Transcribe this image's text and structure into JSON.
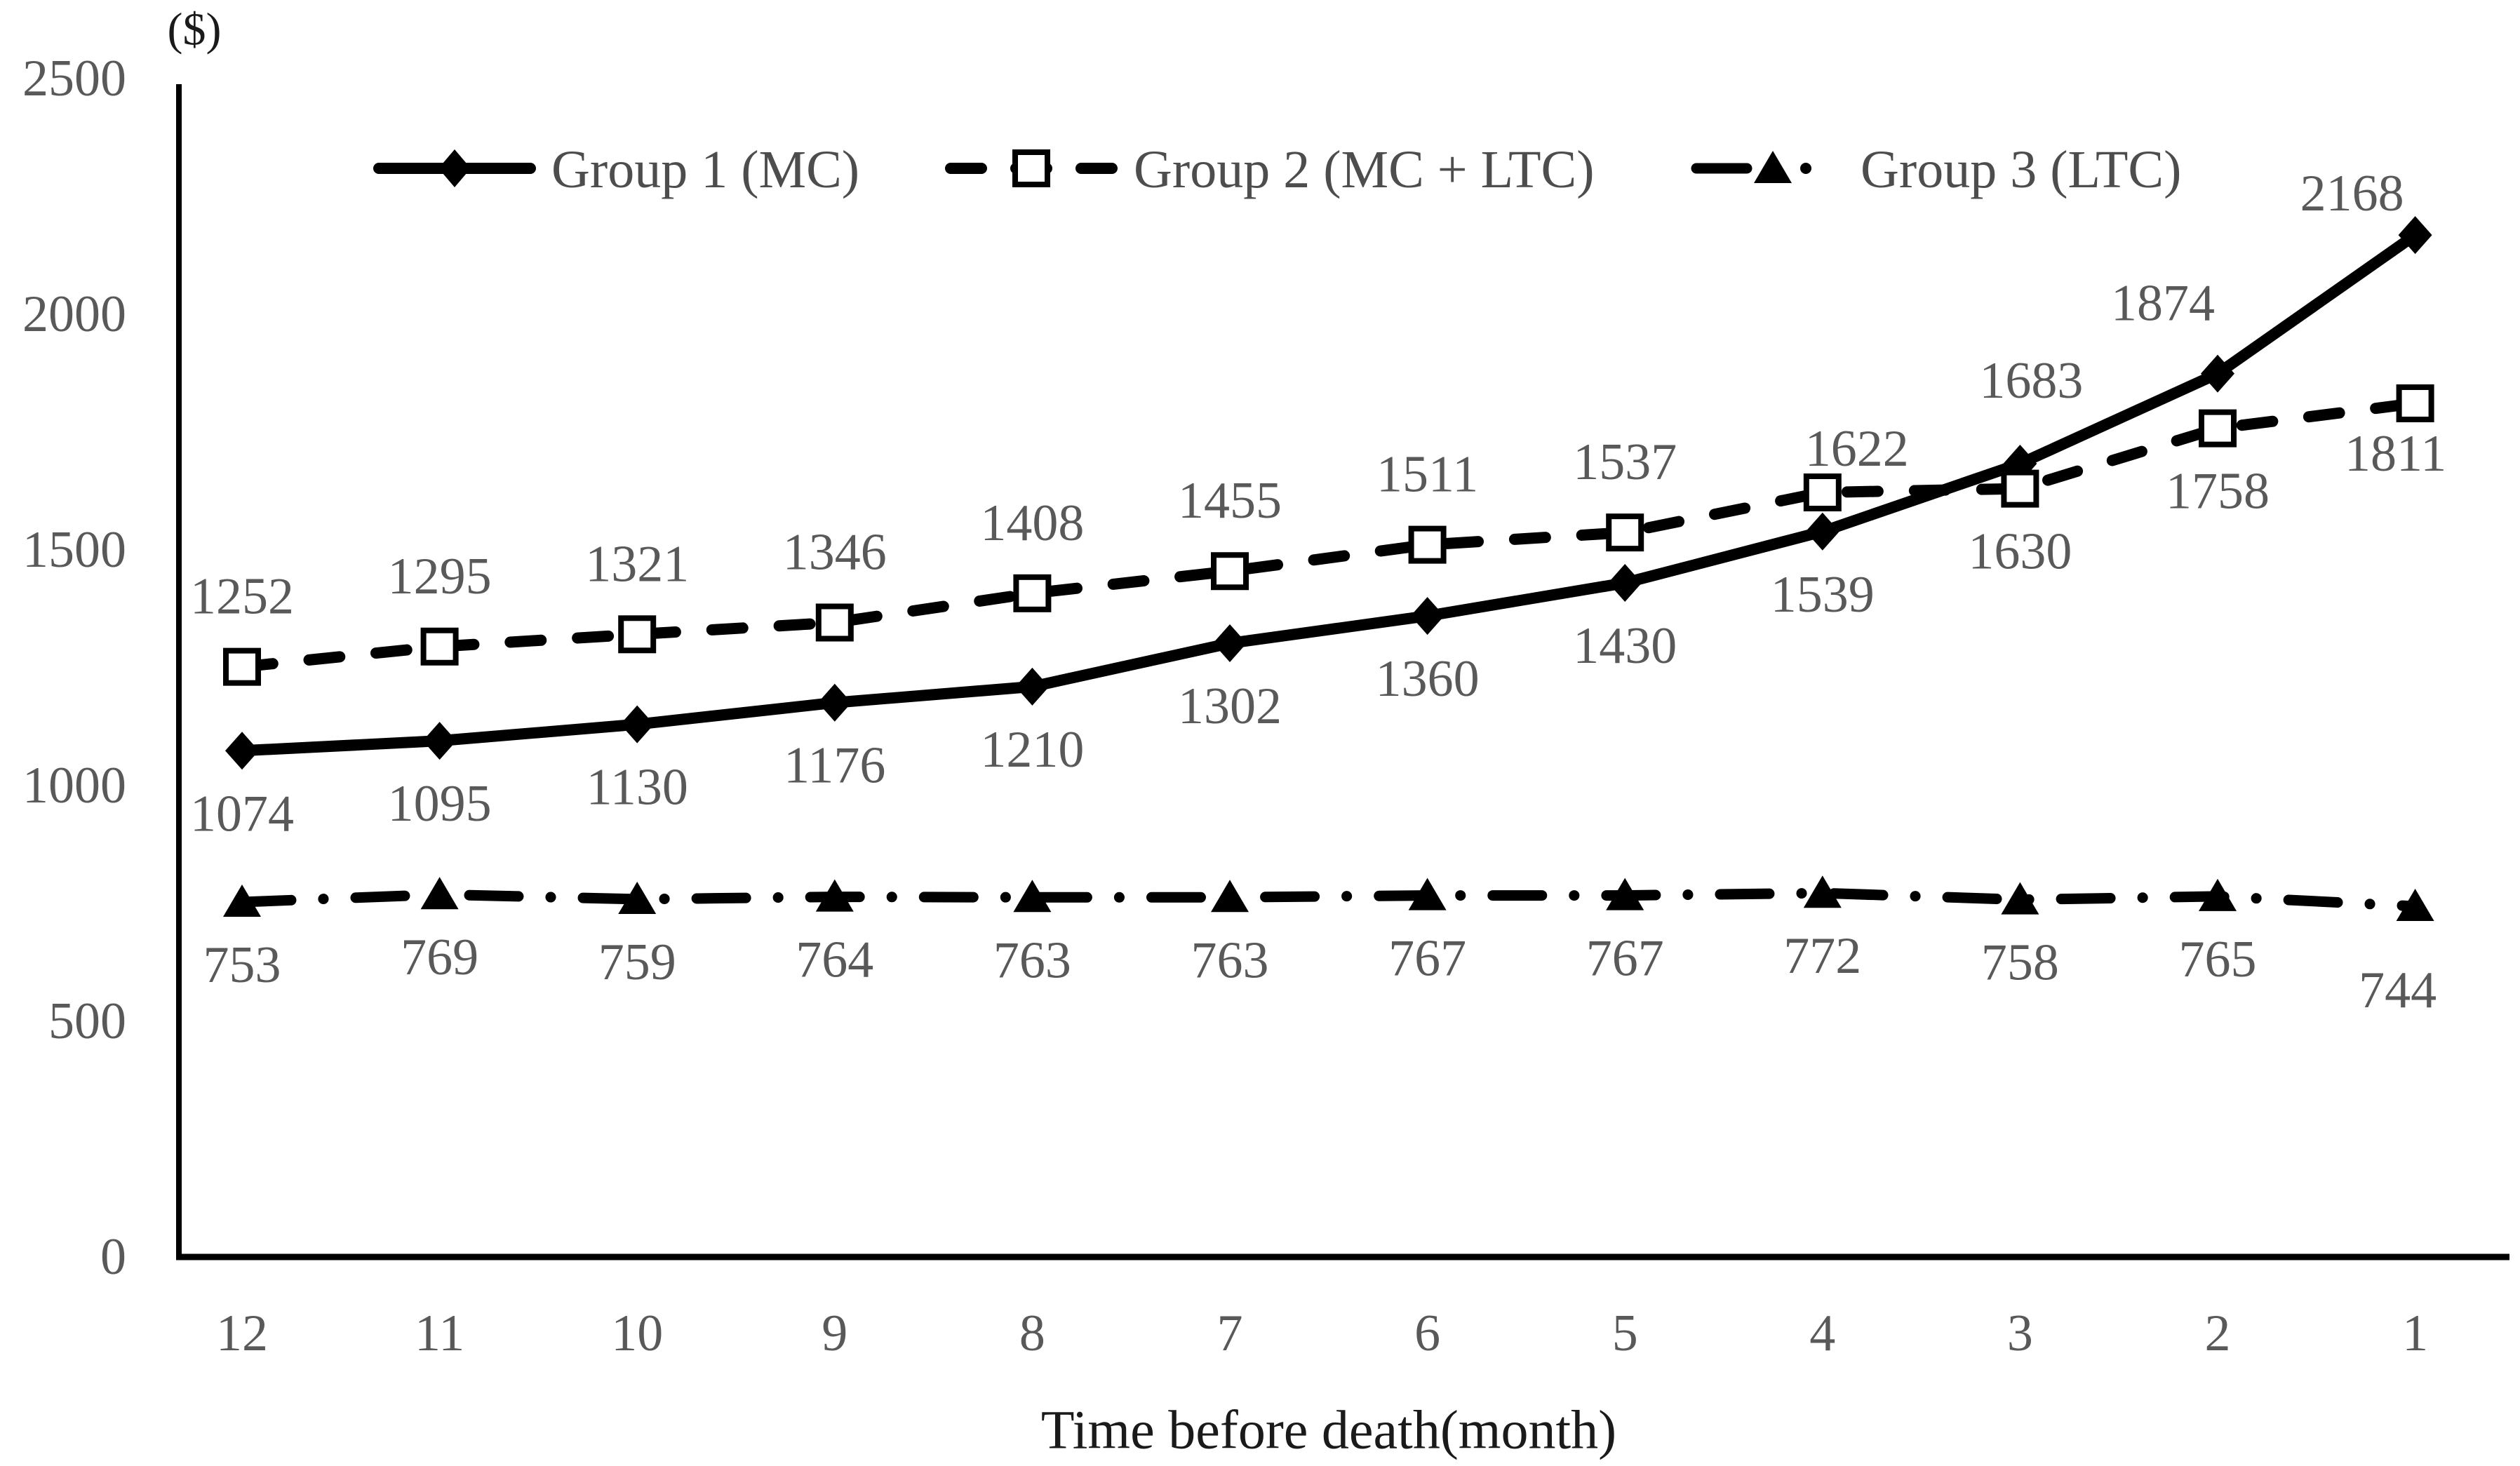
{
  "figure": {
    "unit_label": "($)",
    "x_axis_title": "Time before death(month)"
  },
  "colors": {
    "line": "#000000",
    "tick_text": "#595959",
    "data_label_text": "#595959",
    "legend_text": "#4d4d4d",
    "axis": "#000000",
    "background": "#ffffff"
  },
  "chart_data": {
    "type": "line",
    "title": "",
    "xlabel": "Time before death(month)",
    "ylabel": "($)",
    "ylim": [
      0,
      2500
    ],
    "yticks": [
      0,
      500,
      1000,
      1500,
      2000,
      2500
    ],
    "categories": [
      "12",
      "11",
      "10",
      "9",
      "8",
      "7",
      "6",
      "5",
      "4",
      "3",
      "2",
      "1"
    ],
    "grid": false,
    "legend_position": "top-center",
    "series": [
      {
        "name": "Group 1 (MC)",
        "marker": "diamond-filled",
        "line_style": "solid",
        "values": [
          1074,
          1095,
          1130,
          1176,
          1210,
          1302,
          1360,
          1430,
          1539,
          1683,
          1874,
          2168
        ],
        "label_positions": [
          "below",
          "below",
          "below",
          "below",
          "below",
          "below",
          "below",
          "below",
          "below",
          "above",
          "above",
          "above"
        ],
        "label_offsets": {
          "9": [
            16,
            -18
          ],
          "10": [
            -78,
            0
          ],
          "11": [
            -90,
            41
          ]
        }
      },
      {
        "name": "Group 2 (MC + LTC)",
        "marker": "square-open",
        "line_style": "dashed",
        "values": [
          1252,
          1295,
          1321,
          1346,
          1408,
          1455,
          1511,
          1537,
          1622,
          1630,
          1758,
          1811
        ],
        "label_positions": [
          "above",
          "above",
          "above",
          "above",
          "above",
          "above",
          "above",
          "above",
          "above",
          "below",
          "below",
          "below"
        ],
        "label_offsets": {
          "8": [
            49,
            38
          ],
          "11": [
            -28,
            -18
          ]
        }
      },
      {
        "name": "Group 3 (LTC)",
        "marker": "triangle-filled",
        "line_style": "dash-dot",
        "values": [
          753,
          769,
          759,
          764,
          763,
          763,
          767,
          767,
          772,
          758,
          765,
          744
        ],
        "label_positions": [
          "below",
          "below",
          "below",
          "below",
          "below",
          "below",
          "below",
          "below",
          "below",
          "below",
          "below",
          "below"
        ],
        "label_offsets": {
          "11": [
            -25,
            30
          ]
        }
      }
    ]
  }
}
